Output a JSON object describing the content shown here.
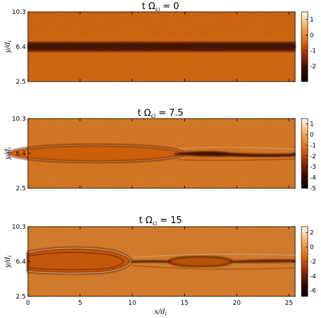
{
  "chart_data": [
    {
      "type": "heatmap",
      "title": "t Ω",
      "title_sub": "ci",
      "title_value": " = 0",
      "ylabel": "y/d",
      "ylabel_sub": "i",
      "yticks": [
        {
          "value": 2.5,
          "label": "2.5"
        },
        {
          "value": 6.4,
          "label": "6.4"
        },
        {
          "value": 10.3,
          "label": "10.3"
        }
      ],
      "ylim": [
        2.5,
        10.3
      ],
      "xlim": [
        0,
        25.6
      ],
      "show_xticklabels": false,
      "colorbar": {
        "range": [
          -3,
          1.5
        ],
        "ticks": [
          {
            "value": 1,
            "label": "1"
          },
          {
            "value": 0,
            "label": "0"
          },
          {
            "value": -1,
            "label": "-1"
          },
          {
            "value": -2,
            "label": "-2"
          }
        ]
      },
      "features": [
        {
          "kind": "current-sheet",
          "x_range": [
            0,
            25.6
          ],
          "y_center": 6.4,
          "half_width": 0.45,
          "note": "uniform dark horizontal sheet"
        }
      ]
    },
    {
      "type": "heatmap",
      "title": "t Ω",
      "title_sub": "ci",
      "title_value": " = 7.5",
      "ylabel": "y/d",
      "ylabel_sub": "i",
      "yticks": [
        {
          "value": 2.5,
          "label": "2.5"
        },
        {
          "value": 6.4,
          "label": "6.4"
        },
        {
          "value": 10.3,
          "label": "10.3"
        }
      ],
      "ylim": [
        2.5,
        10.3
      ],
      "xlim": [
        0,
        25.6
      ],
      "show_xticklabels": false,
      "colorbar": {
        "range": [
          -5,
          1.5
        ],
        "ticks": [
          {
            "value": 1,
            "label": "1"
          },
          {
            "value": 0,
            "label": "0"
          },
          {
            "value": -1,
            "label": "-1"
          },
          {
            "value": -2,
            "label": "-2"
          },
          {
            "value": -3,
            "label": "-3"
          },
          {
            "value": -4,
            "label": "-4"
          },
          {
            "value": -5,
            "label": "-5"
          }
        ]
      },
      "features": [
        {
          "kind": "island",
          "x_center": 6.5,
          "y_center": 6.4,
          "half_length": 8.5,
          "half_height": 0.75
        },
        {
          "kind": "thin-sheet",
          "x_range": [
            14,
            25.6
          ],
          "y_center": 6.5
        }
      ]
    },
    {
      "type": "heatmap",
      "title": "t Ω",
      "title_sub": "ci",
      "title_value": " = 15",
      "ylabel": "y/d",
      "ylabel_sub": "i",
      "xlabel": "x/d",
      "xlabel_sub": "i",
      "yticks": [
        {
          "value": 2.5,
          "label": "2.5"
        },
        {
          "value": 6.4,
          "label": "6.4"
        },
        {
          "value": 10.3,
          "label": "10.3"
        }
      ],
      "ylim": [
        2.5,
        10.3
      ],
      "xlim": [
        0,
        25.6
      ],
      "show_xticklabels": true,
      "xticks": [
        {
          "value": 0,
          "label": "0"
        },
        {
          "value": 5,
          "label": "5"
        },
        {
          "value": 10,
          "label": "10"
        },
        {
          "value": 15,
          "label": "15"
        },
        {
          "value": 20,
          "label": "20"
        },
        {
          "value": 25,
          "label": "25"
        }
      ],
      "colorbar": {
        "range": [
          -6.8,
          2.8
        ],
        "ticks": [
          {
            "value": 2,
            "label": "2"
          },
          {
            "value": 0,
            "label": "0"
          },
          {
            "value": -2,
            "label": "-2"
          },
          {
            "value": -4,
            "label": "-4"
          },
          {
            "value": -6,
            "label": "-6"
          }
        ]
      },
      "features": [
        {
          "kind": "island",
          "x_center": 4.8,
          "y_center": 6.5,
          "half_length": 4.8,
          "half_height": 1.05
        },
        {
          "kind": "island",
          "x_center": 16.3,
          "y_center": 6.35,
          "half_length": 3.2,
          "half_height": 0.45
        },
        {
          "kind": "thin-sheet",
          "x_range": [
            9.5,
            25.6
          ],
          "y_center": 6.3
        }
      ]
    }
  ]
}
